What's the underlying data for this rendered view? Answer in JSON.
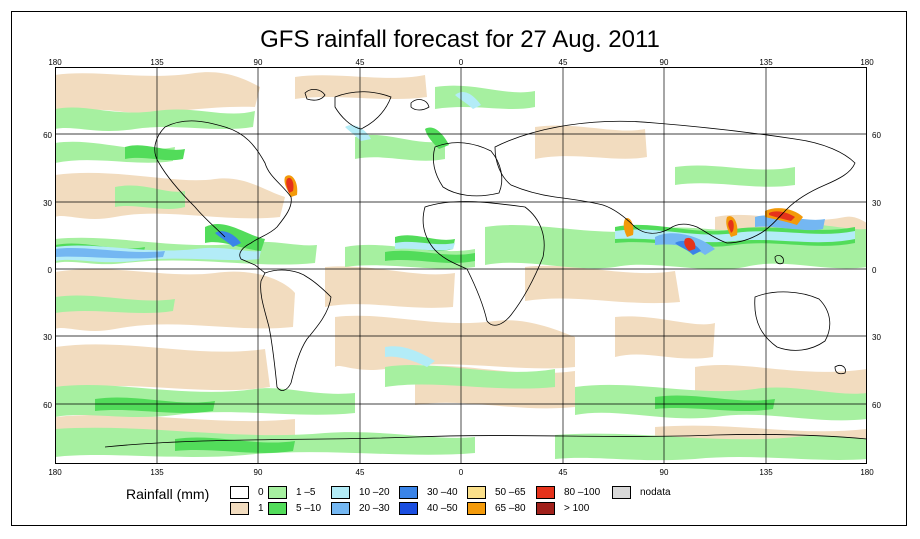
{
  "title": "GFS rainfall forecast for 27 Aug. 2011",
  "lon_ticks": [
    "180",
    "135",
    "90",
    "45",
    "0",
    "45",
    "90",
    "135",
    "180"
  ],
  "lat_ticks": [
    "60",
    "30",
    "0",
    "30",
    "60"
  ],
  "legend": {
    "title": "Rainfall (mm)",
    "items": [
      {
        "label": "0",
        "color": "#ffffff"
      },
      {
        "label": "1",
        "color": "#f2dcbf"
      },
      {
        "label": "1 –5",
        "color": "#a6f0a0"
      },
      {
        "label": "5 –10",
        "color": "#52dc5a"
      },
      {
        "label": "10 –20",
        "color": "#b3ecf7"
      },
      {
        "label": "20 –30",
        "color": "#74b7f2"
      },
      {
        "label": "30 –40",
        "color": "#3a84e8"
      },
      {
        "label": "40 –50",
        "color": "#1a4ee0"
      },
      {
        "label": "50 –65",
        "color": "#fbe08a"
      },
      {
        "label": "65 –80",
        "color": "#f39a0a"
      },
      {
        "label": "80 –100",
        "color": "#e5321b"
      },
      {
        "label": "> 100",
        "color": "#a0201a"
      },
      {
        "label": "nodata",
        "color": "#d8d8d8"
      }
    ]
  }
}
